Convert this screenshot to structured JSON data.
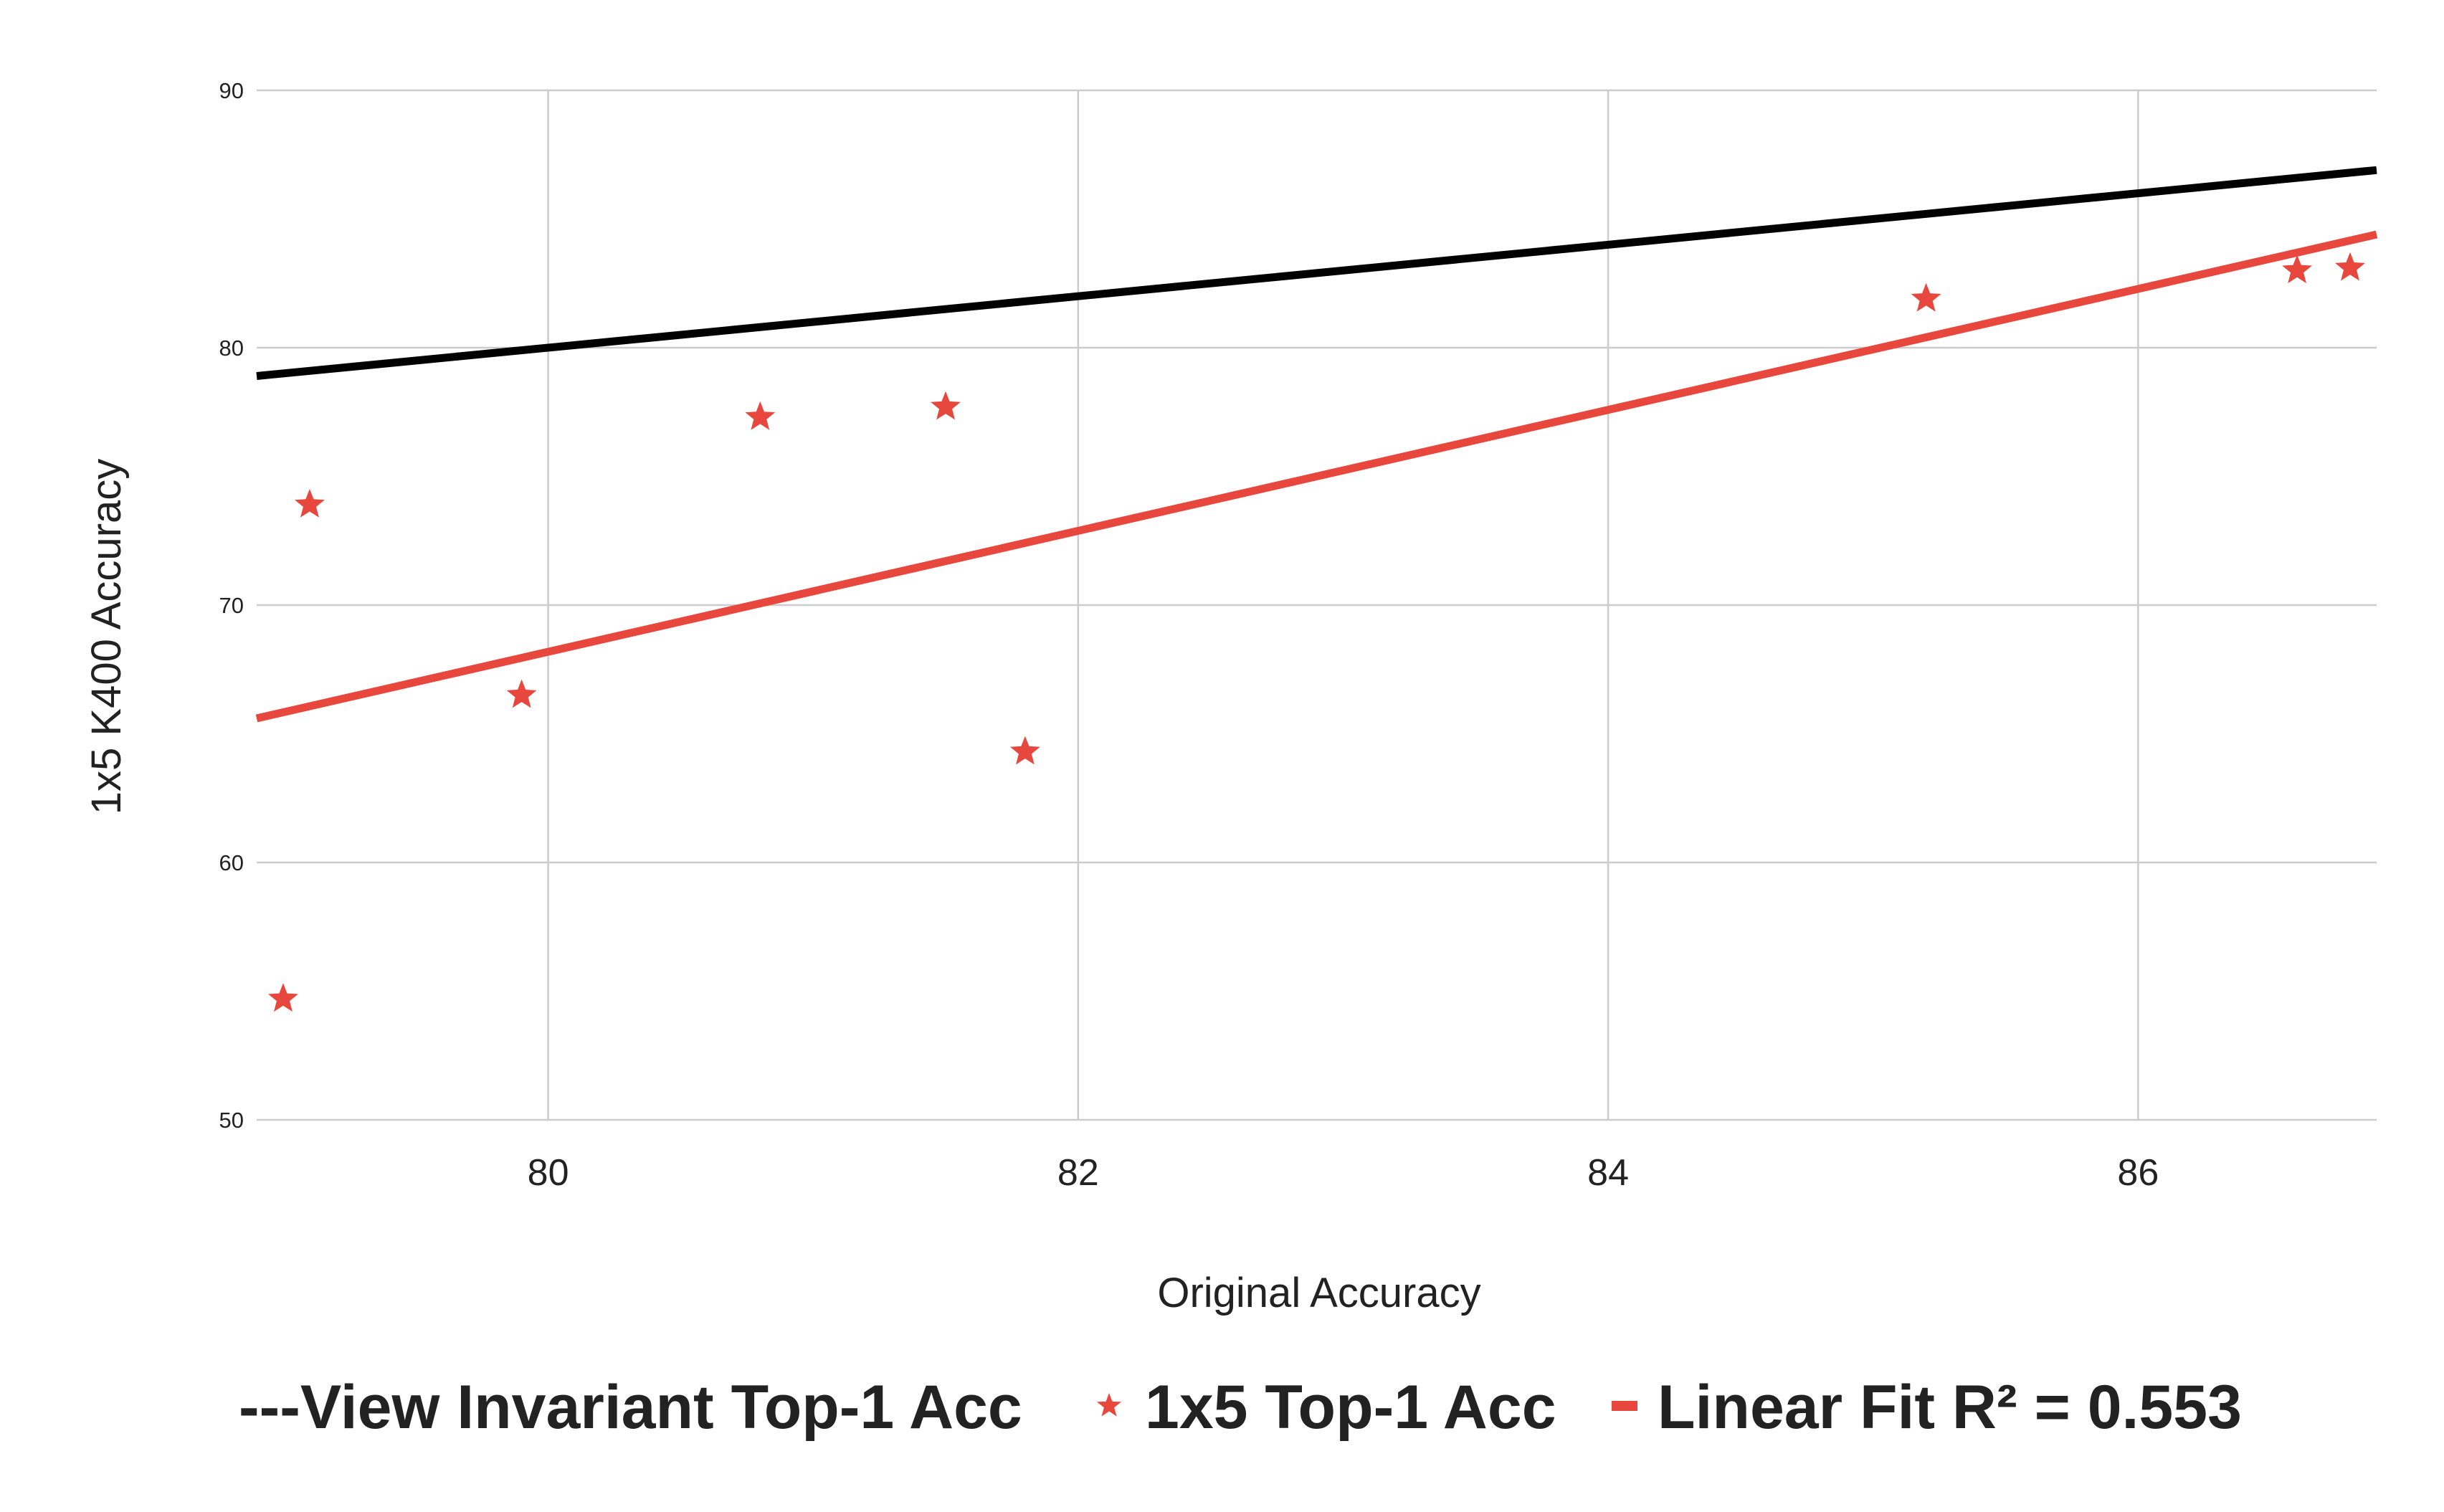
{
  "chart_data": {
    "type": "scatter",
    "xlabel": "Original Accuracy",
    "ylabel": "1x5 K400 Accuracy",
    "xlim": [
      78.9,
      86.9
    ],
    "ylim": [
      50,
      90
    ],
    "xticks": [
      "80",
      "82",
      "84",
      "86"
    ],
    "yticks": [
      "50",
      "60",
      "70",
      "80",
      "90"
    ],
    "grid": true,
    "legend_position": "bottom",
    "series": [
      {
        "kind": "line",
        "legend_label": "---View Invariant Top-1 Acc",
        "color": "#000000",
        "points": [
          [
            78.9,
            78.9
          ],
          [
            86.9,
            86.9
          ]
        ]
      },
      {
        "kind": "scatter",
        "marker": "star",
        "legend_label": "1x5 Top-1 Acc",
        "color": "#e8473d",
        "points": [
          [
            79.0,
            54.7
          ],
          [
            79.1,
            73.9
          ],
          [
            79.9,
            66.5
          ],
          [
            80.8,
            77.3
          ],
          [
            81.5,
            77.7
          ],
          [
            81.8,
            64.3
          ],
          [
            85.2,
            81.9
          ],
          [
            86.6,
            83.0
          ],
          [
            86.8,
            83.1
          ]
        ]
      },
      {
        "kind": "line",
        "legend_label": "Linear Fit R² = 0.553",
        "color": "#e8473d",
        "points": [
          [
            78.9,
            65.6
          ],
          [
            86.9,
            84.4
          ]
        ]
      }
    ]
  }
}
